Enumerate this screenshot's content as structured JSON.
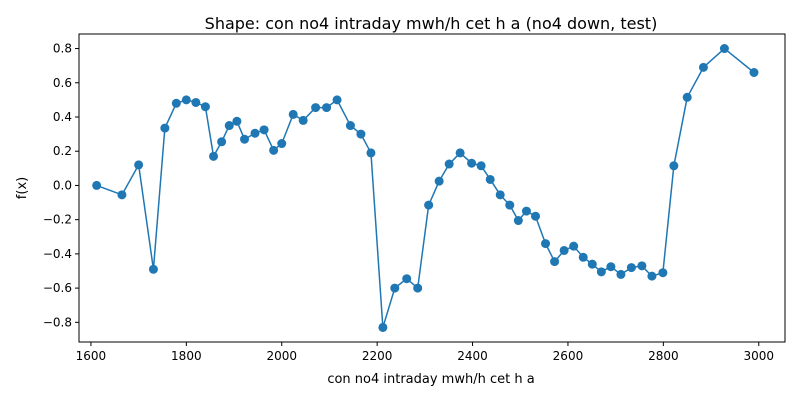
{
  "chart_data": {
    "type": "line",
    "title": "Shape: con no4 intraday mwh/h cet h a (no4 down, test)",
    "xlabel": "con no4 intraday mwh/h cet h a",
    "ylabel": "f(x)",
    "xlim": [
      1575,
      3055
    ],
    "ylim": [
      -0.915,
      0.885
    ],
    "xticks": [
      1600,
      1800,
      2000,
      2200,
      2400,
      2600,
      2800,
      3000
    ],
    "yticks": [
      -0.8,
      -0.6,
      -0.4,
      -0.2,
      0.0,
      0.2,
      0.4,
      0.6,
      0.8
    ],
    "xtick_labels": [
      "1600",
      "1800",
      "2000",
      "2200",
      "2400",
      "2600",
      "2800",
      "3000"
    ],
    "ytick_labels": [
      "−0.8",
      "−0.6",
      "−0.4",
      "−0.2",
      "0.0",
      "0.2",
      "0.4",
      "0.6",
      "0.8"
    ],
    "grid": false,
    "color": "#1f77b4",
    "series": [
      {
        "x": [
          1612,
          1665,
          1700,
          1731,
          1755,
          1779,
          1800,
          1820,
          1840,
          1857,
          1874,
          1890,
          1906,
          1922,
          1944,
          1963,
          1983,
          2000,
          2024,
          2045,
          2071,
          2094,
          2116,
          2144,
          2166,
          2187,
          2212,
          2237,
          2262,
          2285,
          2308,
          2330,
          2351,
          2374,
          2398,
          2418,
          2437,
          2458,
          2478,
          2496,
          2513,
          2532,
          2553,
          2572,
          2592,
          2612,
          2632,
          2651,
          2670,
          2690,
          2711,
          2733,
          2755,
          2776,
          2799,
          2822,
          2850,
          2884,
          2928,
          2990
        ],
        "y": [
          0.0,
          -0.055,
          0.12,
          -0.49,
          0.335,
          0.48,
          0.5,
          0.485,
          0.46,
          0.17,
          0.255,
          0.35,
          0.375,
          0.27,
          0.305,
          0.325,
          0.205,
          0.245,
          0.415,
          0.38,
          0.455,
          0.455,
          0.5,
          0.35,
          0.3,
          0.19,
          -0.83,
          -0.6,
          -0.545,
          -0.6,
          -0.115,
          0.025,
          0.125,
          0.19,
          0.13,
          0.115,
          0.035,
          -0.055,
          -0.115,
          -0.205,
          -0.15,
          -0.18,
          -0.34,
          -0.445,
          -0.38,
          -0.355,
          -0.42,
          -0.46,
          -0.505,
          -0.475,
          -0.52,
          -0.48,
          -0.47,
          -0.53,
          -0.51,
          0.115,
          0.515,
          0.69,
          0.8,
          0.66
        ]
      }
    ]
  }
}
